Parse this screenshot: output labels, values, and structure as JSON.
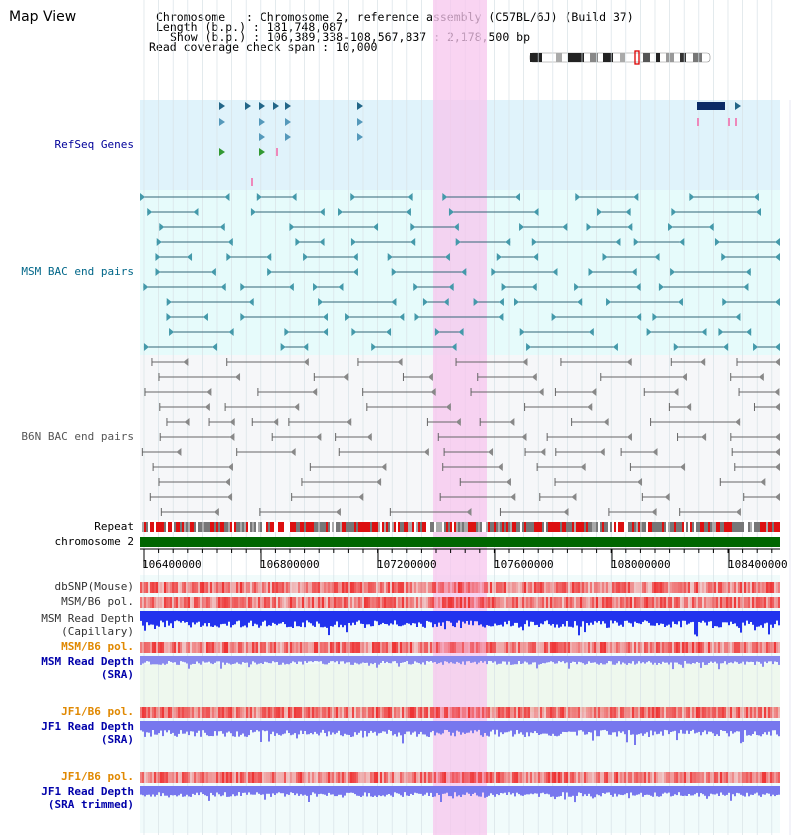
{
  "title": "Map View",
  "info": {
    "chromosome": "Chromosome   : Chromosome 2, reference assembly (C57BL/6J) (Build 37)",
    "length": "Length (b.p.) : 181,748,087",
    "show": "Show (b.p.) : 106,389,338-108,567,837 : 2,178,500 bp",
    "coverage": "Read coverage check span : 10,000"
  },
  "tracks": {
    "refseq": "RefSeq Genes",
    "msm_bac": "MSM BAC end pairs",
    "b6n_bac": "B6N BAC end pairs",
    "repeat": "Repeat",
    "chromosome": "chromosome 2",
    "dbsnp": "dbSNP(Mouse)",
    "msm_b6_pol_1": "MSM/B6 pol.",
    "msm_depth_cap_1": "MSM Read Depth",
    "msm_depth_cap_2": "(Capillary)",
    "msm_b6_pol_2": "MSM/B6 pol.",
    "msm_depth_sra_1": "MSM Read Depth",
    "msm_depth_sra_2": "(SRA)",
    "jf1_b6_pol_1": "JF1/B6 pol.",
    "jf1_depth_sra_1": "JF1 Read Depth",
    "jf1_depth_sra_2": "(SRA)",
    "jf1_b6_pol_2": "JF1/B6 pol.",
    "jf1_depth_trim_1": "JF1 Read Depth",
    "jf1_depth_trim_2": "(SRA trimmed)"
  },
  "axis": {
    "ticks": [
      "106400000",
      "106800000",
      "107200000",
      "107600000",
      "108000000",
      "108400000"
    ]
  },
  "colors": {
    "refseq_label": "#000099",
    "msm_label": "#006688",
    "b6n_label": "#555555",
    "orange_label": "#e08800",
    "blue_label": "#0000aa",
    "highlight": "#f7c6ee",
    "chromosome_bar": "#006600"
  }
}
